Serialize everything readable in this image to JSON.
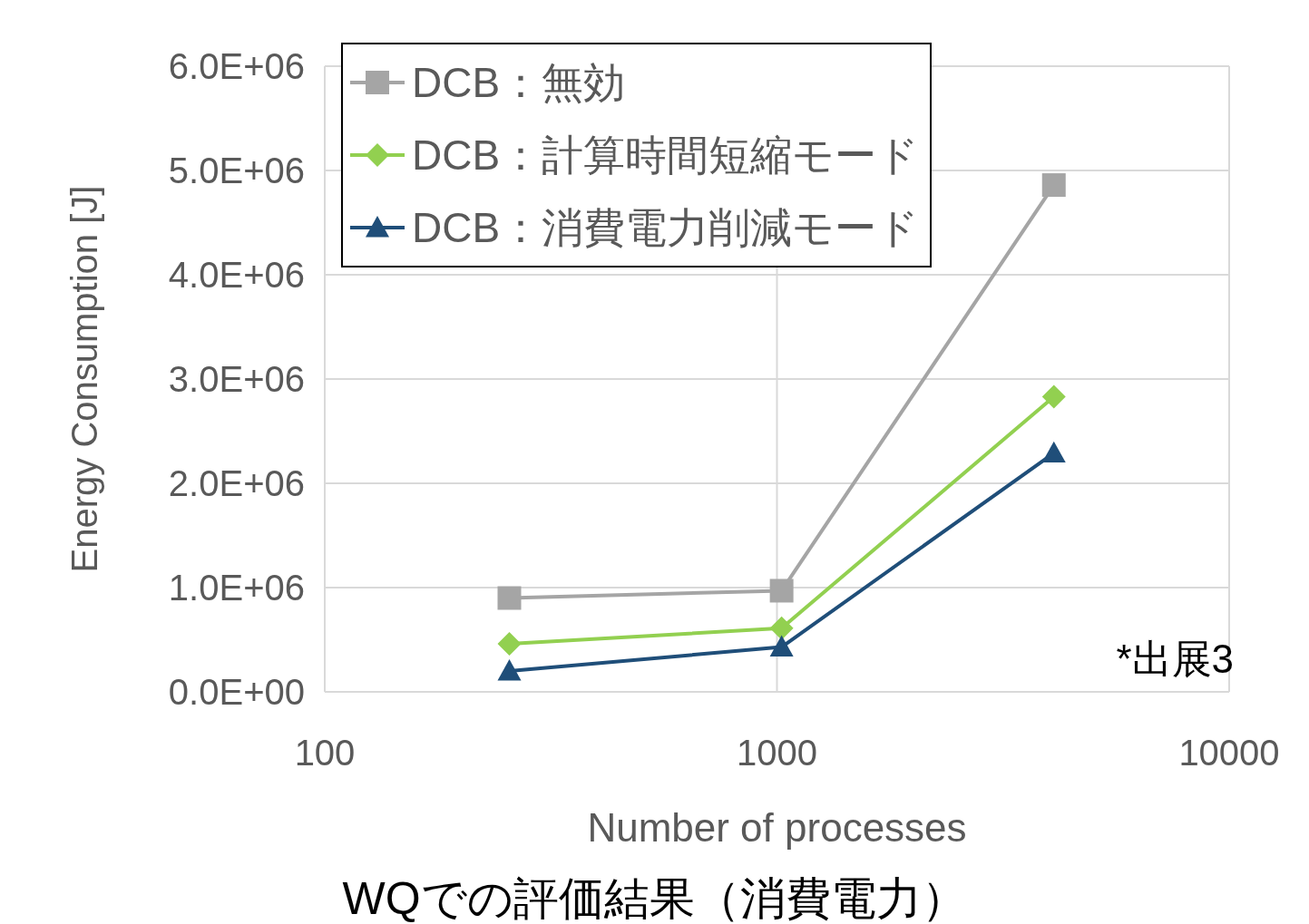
{
  "chart_data": {
    "type": "line",
    "title": "WQでの評価結果（消費電力）",
    "xlabel": "Number of processes",
    "ylabel": "Energy Consumption [J]",
    "log": "x",
    "xlim": [
      100,
      10000
    ],
    "xticks": [
      100,
      1000,
      10000
    ],
    "ylim": [
      0,
      6000000
    ],
    "yticks": [
      {
        "value": 0,
        "label": "0.0E+00"
      },
      {
        "value": 1000000,
        "label": "1.0E+06"
      },
      {
        "value": 2000000,
        "label": "2.0E+06"
      },
      {
        "value": 3000000,
        "label": "3.0E+06"
      },
      {
        "value": 4000000,
        "label": "4.0E+06"
      },
      {
        "value": 5000000,
        "label": "5.0E+06"
      },
      {
        "value": 6000000,
        "label": "6.0E+06"
      }
    ],
    "grid": true,
    "legend": "top left",
    "annotations": [
      "*出展3"
    ],
    "series": [
      {
        "name": "DCB：無効",
        "color": "#a5a5a5",
        "marker": "square",
        "x": [
          256,
          1024,
          4096
        ],
        "values": [
          900000,
          970000,
          4860000
        ]
      },
      {
        "name": "DCB：計算時間短縮モード",
        "color": "#92d050",
        "marker": "diamond",
        "x": [
          256,
          1024,
          4096
        ],
        "values": [
          460000,
          610000,
          2830000
        ]
      },
      {
        "name": "DCB：消費電力削減モード",
        "color": "#1f4e79",
        "marker": "triangle",
        "x": [
          256,
          1024,
          4096
        ],
        "values": [
          200000,
          430000,
          2290000
        ]
      }
    ]
  }
}
